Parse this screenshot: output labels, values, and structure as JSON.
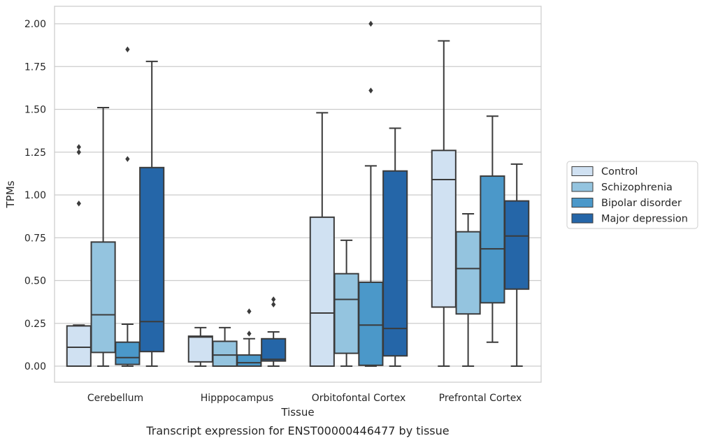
{
  "chart_data": {
    "type": "boxplot",
    "xlabel": "Tissue",
    "ylabel": "TPMs",
    "caption": "Transcript expression for ENST00000446477 by tissue",
    "ylim": [
      -0.1,
      2.1
    ],
    "yticks": [
      0.0,
      0.25,
      0.5,
      0.75,
      1.0,
      1.25,
      1.5,
      1.75,
      2.0
    ],
    "ytick_labels": [
      "0.00",
      "0.25",
      "0.50",
      "0.75",
      "1.00",
      "1.25",
      "1.50",
      "1.75",
      "2.00"
    ],
    "grid": "horizontal",
    "legend_position": "right",
    "categories": [
      "Cerebellum",
      "Hipppocampus",
      "Orbitofontal Cortex",
      "Prefrontal Cortex"
    ],
    "series": [
      {
        "name": "Control",
        "color": "#d0e1f2",
        "boxes": [
          {
            "whislo": 0.0,
            "q1": 0.0,
            "med": 0.11,
            "q3": 0.235,
            "whishi": 0.24,
            "fliers": [
              0.95,
              1.25,
              1.28
            ]
          },
          {
            "whislo": 0.0,
            "q1": 0.025,
            "med": 0.17,
            "q3": 0.175,
            "whishi": 0.225,
            "fliers": []
          },
          {
            "whislo": 0.0,
            "q1": 0.0,
            "med": 0.31,
            "q3": 0.87,
            "whishi": 1.48,
            "fliers": []
          },
          {
            "whislo": 0.0,
            "q1": 0.345,
            "med": 1.09,
            "q3": 1.26,
            "whishi": 1.9,
            "fliers": []
          }
        ]
      },
      {
        "name": "Schizophrenia",
        "color": "#94c4df",
        "boxes": [
          {
            "whislo": 0.0,
            "q1": 0.08,
            "med": 0.3,
            "q3": 0.725,
            "whishi": 1.51,
            "fliers": []
          },
          {
            "whislo": 0.0,
            "q1": 0.0,
            "med": 0.065,
            "q3": 0.145,
            "whishi": 0.225,
            "fliers": []
          },
          {
            "whislo": 0.0,
            "q1": 0.075,
            "med": 0.39,
            "q3": 0.54,
            "whishi": 0.735,
            "fliers": []
          },
          {
            "whislo": 0.0,
            "q1": 0.305,
            "med": 0.57,
            "q3": 0.785,
            "whishi": 0.89,
            "fliers": []
          }
        ]
      },
      {
        "name": "Bipolar disorder",
        "color": "#4b98c9",
        "boxes": [
          {
            "whislo": 0.0,
            "q1": 0.01,
            "med": 0.05,
            "q3": 0.14,
            "whishi": 0.245,
            "fliers": [
              1.21,
              1.85
            ]
          },
          {
            "whislo": 0.0,
            "q1": 0.0,
            "med": 0.02,
            "q3": 0.065,
            "whishi": 0.16,
            "fliers": [
              0.19,
              0.32
            ]
          },
          {
            "whislo": 0.0,
            "q1": 0.005,
            "med": 0.24,
            "q3": 0.49,
            "whishi": 1.17,
            "fliers": [
              1.61,
              2.0
            ]
          },
          {
            "whislo": 0.14,
            "q1": 0.37,
            "med": 0.685,
            "q3": 1.11,
            "whishi": 1.46,
            "fliers": []
          }
        ]
      },
      {
        "name": "Major depression",
        "color": "#2566a8",
        "boxes": [
          {
            "whislo": 0.0,
            "q1": 0.085,
            "med": 0.26,
            "q3": 1.16,
            "whishi": 1.78,
            "fliers": []
          },
          {
            "whislo": 0.0,
            "q1": 0.03,
            "med": 0.04,
            "q3": 0.16,
            "whishi": 0.2,
            "fliers": [
              0.36,
              0.39
            ]
          },
          {
            "whislo": 0.0,
            "q1": 0.06,
            "med": 0.22,
            "q3": 1.14,
            "whishi": 1.39,
            "fliers": []
          },
          {
            "whislo": 0.0,
            "q1": 0.45,
            "med": 0.76,
            "q3": 0.965,
            "whishi": 1.18,
            "fliers": []
          }
        ]
      }
    ]
  }
}
